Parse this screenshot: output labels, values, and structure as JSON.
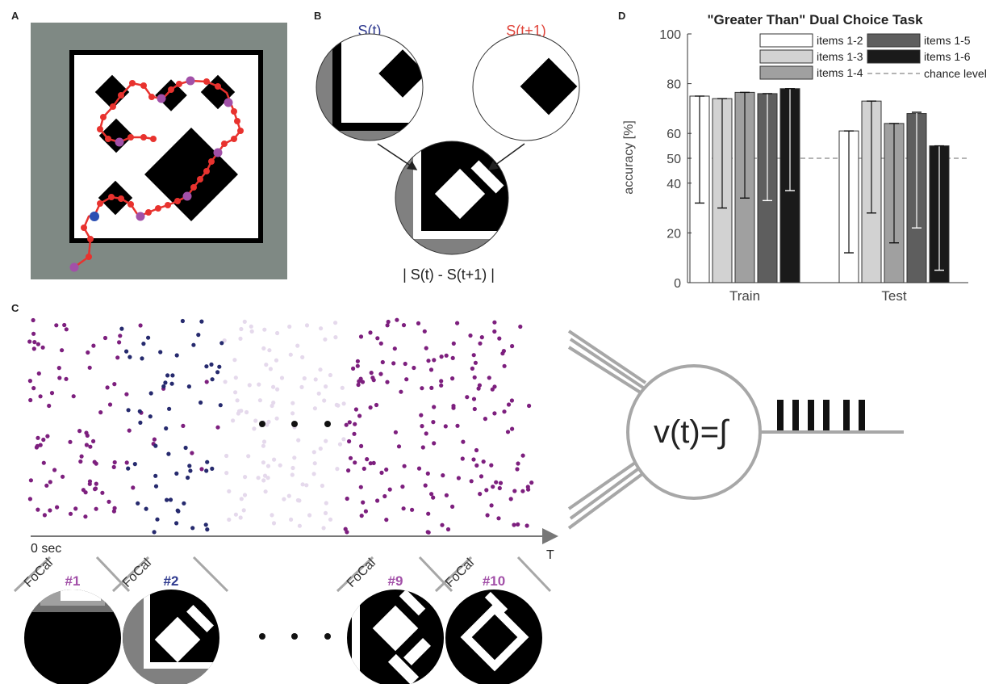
{
  "panels": {
    "a": {
      "letter": "A"
    },
    "b": {
      "letter": "B",
      "state_t": "S(t)",
      "state_t1": "S(t+1)",
      "difference": "| S(t) - S(t+1) |",
      "state_t_color": "#2f3a8f",
      "state_t1_color": "#e0443a"
    },
    "c": {
      "letter": "C",
      "time_start": "0 sec",
      "time_end": "T",
      "neuron_label": "v(t)=∫",
      "focal_label": "FoCal",
      "frames": [
        {
          "id": "#1",
          "color": "#a250a8"
        },
        {
          "id": "#2",
          "color": "#2f3a8f"
        },
        {
          "id": "#9",
          "color": "#a250a8"
        },
        {
          "id": "#10",
          "color": "#a250a8"
        }
      ]
    },
    "d": {
      "letter": "D"
    }
  },
  "colors": {
    "trajectory": "#e8322e",
    "waypoint": "#a250a8",
    "start": "#2c4fb3",
    "spike_purple": "#7d1f7e",
    "spike_navy": "#262a6e",
    "spike_faint": "#e5d9ec",
    "arena_grey": "#7f8984"
  },
  "chart_data": {
    "type": "bar",
    "title": "\"Greater Than\" Dual Choice Task",
    "ylabel": "accuracy [%]",
    "xlabel": "",
    "ylim": [
      0,
      100
    ],
    "yticks": [
      0,
      20,
      40,
      50,
      60,
      80,
      100
    ],
    "categories": [
      "Train",
      "Test"
    ],
    "chance_level": 50,
    "legend_placement": "top-right",
    "series": [
      {
        "name": "items 1-2",
        "color": "#ffffff",
        "values": [
          75,
          61
        ],
        "err_low": [
          32,
          12
        ],
        "err_high": [
          75,
          61
        ]
      },
      {
        "name": "items 1-3",
        "color": "#d2d2d2",
        "values": [
          74,
          73
        ],
        "err_low": [
          30,
          28
        ],
        "err_high": [
          74,
          73
        ]
      },
      {
        "name": "items 1-4",
        "color": "#a0a0a0",
        "values": [
          76.5,
          64
        ],
        "err_low": [
          34,
          16
        ],
        "err_high": [
          76.5,
          64
        ]
      },
      {
        "name": "items 1-5",
        "color": "#5e5e5e",
        "values": [
          76,
          68
        ],
        "err_low": [
          33,
          22
        ],
        "err_high": [
          76,
          68.5
        ]
      },
      {
        "name": "items 1-6",
        "color": "#1a1a1a",
        "values": [
          78,
          55
        ],
        "err_low": [
          37,
          5
        ],
        "err_high": [
          78,
          55
        ]
      }
    ],
    "legend_extra": "chance level"
  }
}
